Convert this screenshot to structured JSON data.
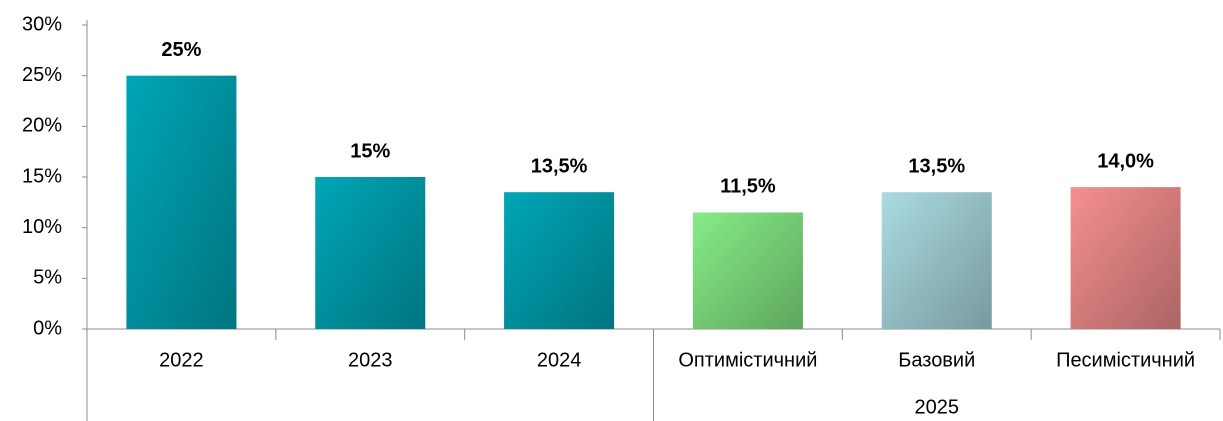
{
  "chart_data": {
    "type": "bar",
    "categories": [
      "2022",
      "2023",
      "2024",
      "Оптимістичний",
      "Базовий",
      "Песимістичний"
    ],
    "group": {
      "label": "2025",
      "members": [
        "Оптимістичний",
        "Базовий",
        "Песимістичний"
      ]
    },
    "values": [
      25,
      15,
      13.5,
      11.5,
      13.5,
      14
    ],
    "value_labels": [
      "25%",
      "15%",
      "13,5%",
      "11,5%",
      "13,5%",
      "14,0%"
    ],
    "colors": [
      "#00a6b6",
      "#00a6b6",
      "#00a6b6",
      "#86ec86",
      "#aadbe2",
      "#f58f8f"
    ],
    "ylim": [
      0,
      30
    ],
    "yticks": [
      {
        "value": 0,
        "label": "0%"
      },
      {
        "value": 5,
        "label": "5%"
      },
      {
        "value": 10,
        "label": "10%"
      },
      {
        "value": 15,
        "label": "15%"
      },
      {
        "value": 20,
        "label": "20%"
      },
      {
        "value": 25,
        "label": "25%"
      },
      {
        "value": 30,
        "label": "30%"
      }
    ],
    "grid": false
  }
}
